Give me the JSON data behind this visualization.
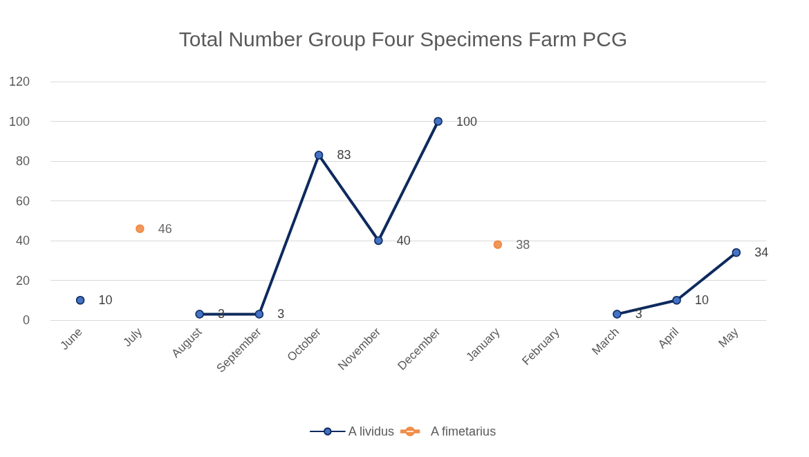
{
  "chart_data": {
    "type": "line",
    "title": "Total Number Group Four Specimens Farm PCG",
    "categories": [
      "June",
      "July",
      "August",
      "September",
      "October",
      "November",
      "December",
      "January",
      "February",
      "March",
      "April",
      "May"
    ],
    "series": [
      {
        "name": "A lividus",
        "color": "#0e2a5e",
        "values": [
          10,
          null,
          3,
          3,
          83,
          40,
          100,
          null,
          null,
          3,
          10,
          34
        ]
      },
      {
        "name": "A fimetarius",
        "type": "scatter",
        "color": "#ed7d31",
        "values": [
          null,
          46,
          null,
          null,
          null,
          null,
          null,
          38,
          null,
          null,
          null,
          null
        ]
      }
    ],
    "ylim": [
      0,
      120
    ],
    "yticks": [
      0,
      20,
      40,
      60,
      80,
      100,
      120
    ],
    "grid": "y",
    "legend": "bottom",
    "marker": "circle",
    "line_style": "solid",
    "data_labels": true
  }
}
